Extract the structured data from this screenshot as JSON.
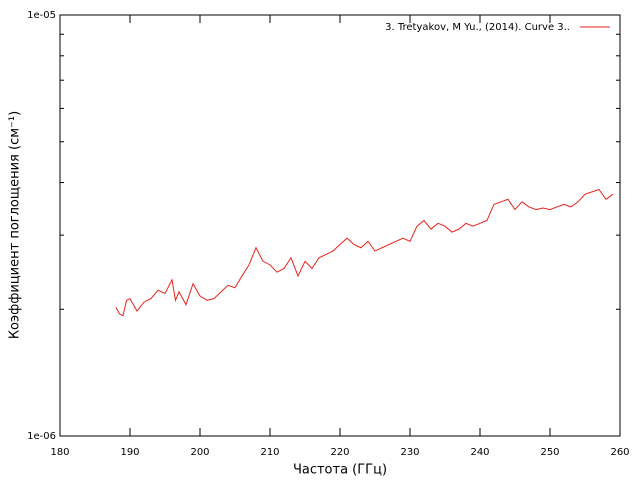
{
  "chart_data": {
    "type": "line",
    "xlabel": "Частота (ГГц)",
    "ylabel": "Коэффициент поглощения (см⁻¹)",
    "log_y": true,
    "legend": "top-right",
    "xlim": [
      180,
      260
    ],
    "xticks": [
      180,
      190,
      200,
      210,
      220,
      230,
      240,
      250,
      260
    ],
    "ylim": [
      1e-06,
      1e-05
    ],
    "yticks": [
      {
        "value": 1e-06,
        "label": "1e-06"
      },
      {
        "value": 1e-05,
        "label": "1e-05"
      }
    ],
    "yminorticks": [
      2e-06,
      3e-06,
      4e-06,
      5e-06,
      6e-06,
      7e-06,
      8e-06,
      9e-06
    ],
    "series": [
      {
        "name": "3. Tretyakov, M Yu., (2014). Curve 3..",
        "color": "#e8221c",
        "x": [
          188,
          188.5,
          189,
          189.5,
          190,
          191,
          192,
          193,
          194,
          195,
          196,
          196.5,
          197,
          198,
          199,
          200,
          201,
          202,
          203,
          204,
          205,
          206,
          207,
          208,
          209,
          210,
          211,
          212,
          213,
          214,
          215,
          216,
          217,
          218,
          219,
          220,
          221,
          222,
          223,
          224,
          225,
          226,
          227,
          228,
          229,
          230,
          231,
          232,
          233,
          234,
          235,
          236,
          237,
          238,
          239,
          240,
          241,
          242,
          243,
          244,
          245,
          246,
          247,
          248,
          249,
          250,
          251,
          252,
          253,
          254,
          255,
          256,
          257,
          258,
          259
        ],
        "values": [
          2.02e-06,
          1.95e-06,
          1.93e-06,
          2.1e-06,
          2.12e-06,
          1.98e-06,
          2.08e-06,
          2.12e-06,
          2.22e-06,
          2.18e-06,
          2.35e-06,
          2.1e-06,
          2.2e-06,
          2.05e-06,
          2.3e-06,
          2.15e-06,
          2.1e-06,
          2.12e-06,
          2.2e-06,
          2.28e-06,
          2.25e-06,
          2.4e-06,
          2.55e-06,
          2.8e-06,
          2.6e-06,
          2.55e-06,
          2.45e-06,
          2.5e-06,
          2.65e-06,
          2.4e-06,
          2.6e-06,
          2.5e-06,
          2.65e-06,
          2.7e-06,
          2.75e-06,
          2.85e-06,
          2.95e-06,
          2.85e-06,
          2.8e-06,
          2.9e-06,
          2.75e-06,
          2.8e-06,
          2.85e-06,
          2.9e-06,
          2.95e-06,
          2.9e-06,
          3.15e-06,
          3.25e-06,
          3.1e-06,
          3.2e-06,
          3.15e-06,
          3.05e-06,
          3.1e-06,
          3.2e-06,
          3.15e-06,
          3.2e-06,
          3.25e-06,
          3.55e-06,
          3.6e-06,
          3.65e-06,
          3.45e-06,
          3.6e-06,
          3.5e-06,
          3.45e-06,
          3.48e-06,
          3.45e-06,
          3.5e-06,
          3.55e-06,
          3.5e-06,
          3.6e-06,
          3.75e-06,
          3.8e-06,
          3.85e-06,
          3.65e-06,
          3.75e-06
        ]
      }
    ]
  }
}
